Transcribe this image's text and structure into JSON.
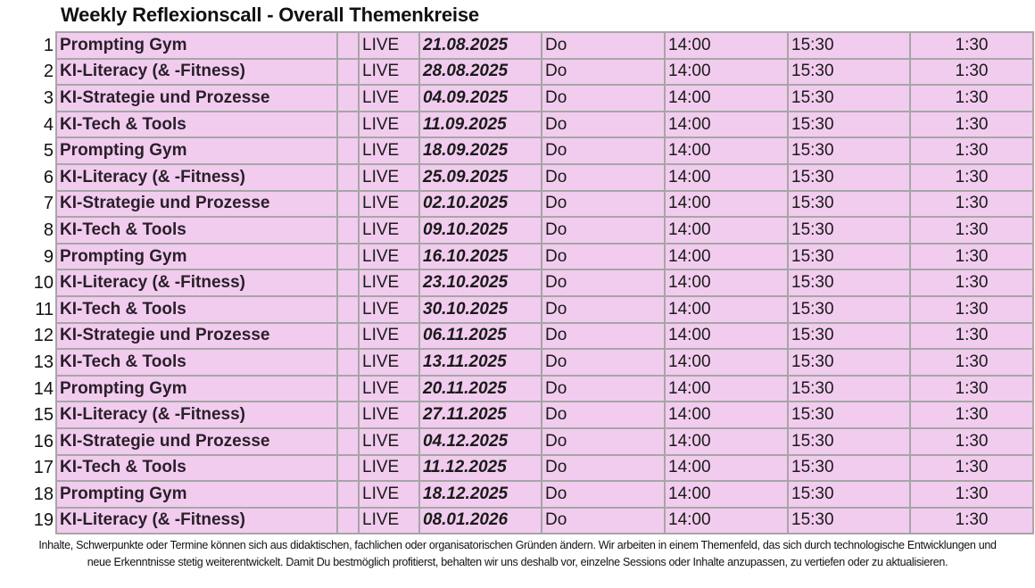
{
  "title": "Weekly Reflexionscall - Overall Themenkreise",
  "rows": [
    {
      "n": "1",
      "topic": "Prompting Gym",
      "extra": "",
      "mode": "LIVE",
      "date": "21.08.2025",
      "day": "Do",
      "start": "14:00",
      "end": "15:30",
      "duration": "1:30"
    },
    {
      "n": "2",
      "topic": "KI-Literacy (& -Fitness)",
      "extra": "",
      "mode": "LIVE",
      "date": "28.08.2025",
      "day": "Do",
      "start": "14:00",
      "end": "15:30",
      "duration": "1:30"
    },
    {
      "n": "3",
      "topic": "KI-Strategie und Prozesse",
      "extra": "",
      "mode": "LIVE",
      "date": "04.09.2025",
      "day": "Do",
      "start": "14:00",
      "end": "15:30",
      "duration": "1:30"
    },
    {
      "n": "4",
      "topic": "KI-Tech & Tools",
      "extra": "",
      "mode": "LIVE",
      "date": "11.09.2025",
      "day": "Do",
      "start": "14:00",
      "end": "15:30",
      "duration": "1:30"
    },
    {
      "n": "5",
      "topic": "Prompting Gym",
      "extra": "",
      "mode": "LIVE",
      "date": "18.09.2025",
      "day": "Do",
      "start": "14:00",
      "end": "15:30",
      "duration": "1:30"
    },
    {
      "n": "6",
      "topic": "KI-Literacy (& -Fitness)",
      "extra": "",
      "mode": "LIVE",
      "date": "25.09.2025",
      "day": "Do",
      "start": "14:00",
      "end": "15:30",
      "duration": "1:30"
    },
    {
      "n": "7",
      "topic": "KI-Strategie und Prozesse",
      "extra": "",
      "mode": "LIVE",
      "date": "02.10.2025",
      "day": "Do",
      "start": "14:00",
      "end": "15:30",
      "duration": "1:30"
    },
    {
      "n": "8",
      "topic": "KI-Tech & Tools",
      "extra": "",
      "mode": "LIVE",
      "date": "09.10.2025",
      "day": "Do",
      "start": "14:00",
      "end": "15:30",
      "duration": "1:30"
    },
    {
      "n": "9",
      "topic": "Prompting Gym",
      "extra": "",
      "mode": "LIVE",
      "date": "16.10.2025",
      "day": "Do",
      "start": "14:00",
      "end": "15:30",
      "duration": "1:30"
    },
    {
      "n": "10",
      "topic": "KI-Literacy (& -Fitness)",
      "extra": "",
      "mode": "LIVE",
      "date": "23.10.2025",
      "day": "Do",
      "start": "14:00",
      "end": "15:30",
      "duration": "1:30"
    },
    {
      "n": "11",
      "topic": "KI-Tech & Tools",
      "extra": "",
      "mode": "LIVE",
      "date": "30.10.2025",
      "day": "Do",
      "start": "14:00",
      "end": "15:30",
      "duration": "1:30"
    },
    {
      "n": "12",
      "topic": "KI-Strategie und Prozesse",
      "extra": "",
      "mode": "LIVE",
      "date": "06.11.2025",
      "day": "Do",
      "start": "14:00",
      "end": "15:30",
      "duration": "1:30"
    },
    {
      "n": "13",
      "topic": "KI-Tech & Tools",
      "extra": "",
      "mode": "LIVE",
      "date": "13.11.2025",
      "day": "Do",
      "start": "14:00",
      "end": "15:30",
      "duration": "1:30"
    },
    {
      "n": "14",
      "topic": "Prompting Gym",
      "extra": "",
      "mode": "LIVE",
      "date": "20.11.2025",
      "day": "Do",
      "start": "14:00",
      "end": "15:30",
      "duration": "1:30"
    },
    {
      "n": "15",
      "topic": "KI-Literacy (& -Fitness)",
      "extra": "",
      "mode": "LIVE",
      "date": "27.11.2025",
      "day": "Do",
      "start": "14:00",
      "end": "15:30",
      "duration": "1:30"
    },
    {
      "n": "16",
      "topic": "KI-Strategie und Prozesse",
      "extra": "",
      "mode": "LIVE",
      "date": "04.12.2025",
      "day": "Do",
      "start": "14:00",
      "end": "15:30",
      "duration": "1:30"
    },
    {
      "n": "17",
      "topic": "KI-Tech & Tools",
      "extra": "",
      "mode": "LIVE",
      "date": "11.12.2025",
      "day": "Do",
      "start": "14:00",
      "end": "15:30",
      "duration": "1:30"
    },
    {
      "n": "18",
      "topic": "Prompting Gym",
      "extra": "",
      "mode": "LIVE",
      "date": "18.12.2025",
      "day": "Do",
      "start": "14:00",
      "end": "15:30",
      "duration": "1:30"
    },
    {
      "n": "19",
      "topic": "KI-Literacy (& -Fitness)",
      "extra": "",
      "mode": "LIVE",
      "date": "08.01.2026",
      "day": "Do",
      "start": "14:00",
      "end": "15:30",
      "duration": "1:30"
    }
  ],
  "note": "Inhalte, Schwerpunkte oder Termine können sich aus didaktischen, fachlichen oder organisatorischen Gründen ändern. Wir arbeiten in einem Themenfeld, das sich durch technologische Entwicklungen und neue Erkenntnisse stetig weiterentwickelt. Damit Du bestmöglich profitierst, behalten wir uns deshalb vor, einzelne Sessions oder Inhalte anzupassen, zu vertiefen oder zu aktualisieren.",
  "colors": {
    "cell_bg": "#f1ccee",
    "border": "#a6a6a6"
  }
}
